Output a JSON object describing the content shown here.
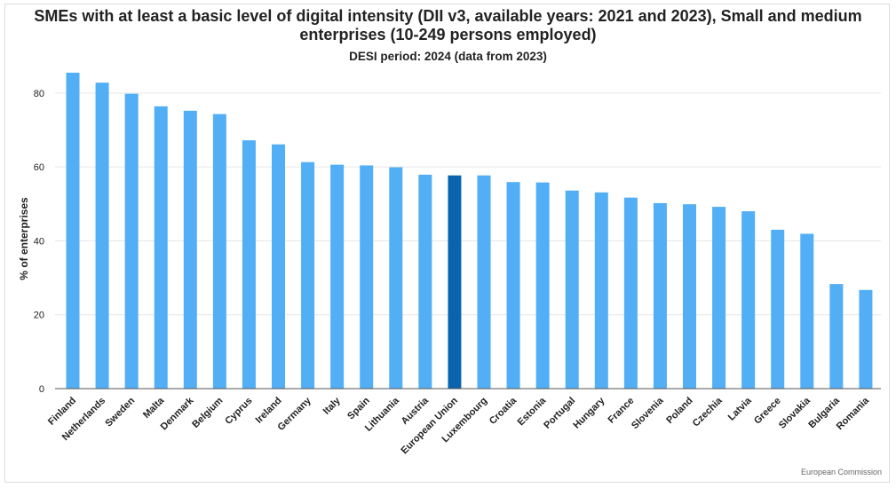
{
  "chart_data": {
    "type": "bar",
    "title": "SMEs with at least a basic level of digital intensity (DII v3, available years: 2021 and 2023), Small and medium enterprises (10-249 persons employed)",
    "subtitle": "DESI period: 2024 (data from 2023)",
    "xlabel": "",
    "ylabel": "% of enterprises",
    "ylim": [
      0,
      85
    ],
    "yticks": [
      0,
      20,
      40,
      60,
      80
    ],
    "grid": true,
    "categories": [
      "Finland",
      "Netherlands",
      "Sweden",
      "Malta",
      "Denmark",
      "Belgium",
      "Cyprus",
      "Ireland",
      "Germany",
      "Italy",
      "Spain",
      "Lithuania",
      "Austria",
      "European Union",
      "Luxembourg",
      "Croatia",
      "Estonia",
      "Portugal",
      "Hungary",
      "France",
      "Slovenia",
      "Poland",
      "Czechia",
      "Latvia",
      "Greece",
      "Slovakia",
      "Bulgaria",
      "Romania"
    ],
    "values": [
      85.5,
      82.8,
      79.8,
      76.4,
      75.2,
      74.3,
      67.2,
      66.1,
      61.3,
      60.6,
      60.4,
      59.9,
      57.9,
      57.7,
      57.7,
      55.9,
      55.8,
      53.6,
      53.1,
      51.7,
      50.2,
      49.9,
      49.2,
      48.0,
      43.0,
      41.9,
      28.3,
      26.7
    ],
    "highlight": "European Union",
    "colors": {
      "bar": "#52aef5",
      "highlight": "#0a64ad",
      "grid": "#e6e6e6",
      "axis": "#555555"
    }
  },
  "source": "European Commission"
}
